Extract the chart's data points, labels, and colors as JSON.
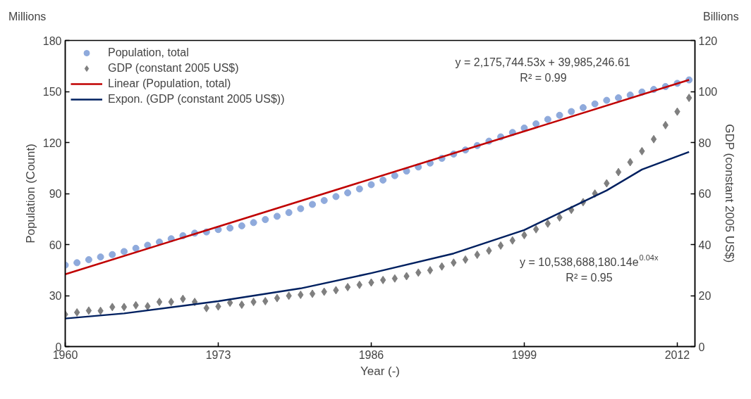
{
  "chart_data": {
    "type": "scatter",
    "xlabel": "Year (-)",
    "ylabel": "Population (Count)",
    "y2label": "GDP (constant 2005 US$)",
    "x": [
      1960,
      1961,
      1962,
      1963,
      1964,
      1965,
      1966,
      1967,
      1968,
      1969,
      1970,
      1971,
      1972,
      1973,
      1974,
      1975,
      1976,
      1977,
      1978,
      1979,
      1980,
      1981,
      1982,
      1983,
      1984,
      1985,
      1986,
      1987,
      1988,
      1989,
      1990,
      1991,
      1992,
      1993,
      1994,
      1995,
      1996,
      1997,
      1998,
      1999,
      2000,
      2001,
      2002,
      2003,
      2004,
      2005,
      2006,
      2007,
      2008,
      2009,
      2010,
      2011,
      2012,
      2013
    ],
    "series": [
      {
        "name": "Population, total",
        "marker": "circle",
        "color": "#8faadc",
        "values": [
          47.9,
          49.3,
          51.1,
          52.7,
          54.1,
          55.9,
          57.8,
          59.6,
          61.5,
          63.4,
          65.2,
          66.7,
          67.4,
          68.8,
          69.7,
          71.0,
          72.9,
          74.7,
          76.6,
          78.8,
          81.1,
          83.6,
          85.9,
          88.2,
          90.4,
          92.7,
          95.2,
          97.9,
          100.5,
          103.2,
          105.6,
          107.9,
          110.7,
          113.2,
          115.6,
          118.2,
          120.8,
          123.3,
          125.9,
          128.5,
          131.0,
          133.6,
          136.0,
          138.2,
          140.5,
          142.7,
          144.8,
          146.3,
          147.9,
          149.7,
          151.2,
          152.9,
          154.8,
          156.8
        ]
      },
      {
        "name": "GDP (constant 2005 US$)",
        "marker": "diamond",
        "color": "#7f7f7f",
        "axis": "y2",
        "values": [
          12.6,
          13.4,
          14.1,
          14.0,
          15.5,
          15.5,
          16.2,
          15.8,
          17.5,
          17.5,
          18.7,
          17.5,
          15.1,
          15.7,
          17.2,
          16.4,
          17.5,
          17.8,
          19.0,
          19.9,
          20.3,
          20.7,
          21.5,
          22.1,
          23.3,
          24.2,
          25.1,
          26.1,
          26.7,
          27.6,
          29.0,
          29.9,
          31.4,
          32.9,
          34.1,
          36.0,
          37.6,
          39.6,
          41.6,
          43.7,
          46.0,
          48.2,
          50.6,
          53.6,
          56.6,
          60.0,
          64.0,
          68.4,
          72.3,
          76.6,
          81.3,
          86.8,
          92.1,
          97.5
        ]
      },
      {
        "name": "Linear (Population, total)",
        "type": "line",
        "color": "#c00000",
        "x": [
          1960,
          2013
        ],
        "values": [
          42.5,
          156.8
        ]
      },
      {
        "name": "Expon. (GDP (constant 2005 US$))",
        "type": "line",
        "color": "#002060",
        "axis": "y2",
        "x": [
          1960,
          1965,
          1973,
          1980,
          1986,
          1993,
          1999,
          2006,
          2009,
          2013
        ],
        "values": [
          11.0,
          13.0,
          17.8,
          22.8,
          28.8,
          36.5,
          45.7,
          61.2,
          69.4,
          76.3
        ]
      }
    ],
    "xlim": [
      1960,
      2013.5
    ],
    "xticks": [
      1960,
      1973,
      1986,
      1999,
      2012
    ],
    "ylim": [
      0,
      180
    ],
    "yticks": [
      0,
      30,
      60,
      90,
      120,
      150,
      180
    ],
    "y2lim": [
      0,
      120
    ],
    "y2ticks": [
      0,
      20,
      40,
      60,
      80,
      100,
      120
    ],
    "grid": false,
    "legend": "top left",
    "annotations": [
      "y = 2,175,744.53x + 39,985,246.61",
      "R² = 0.99",
      "y = 10,538,688,180.14e$^{0.04x}$",
      "R² = 0.95",
      "Millions",
      "Billions"
    ]
  }
}
